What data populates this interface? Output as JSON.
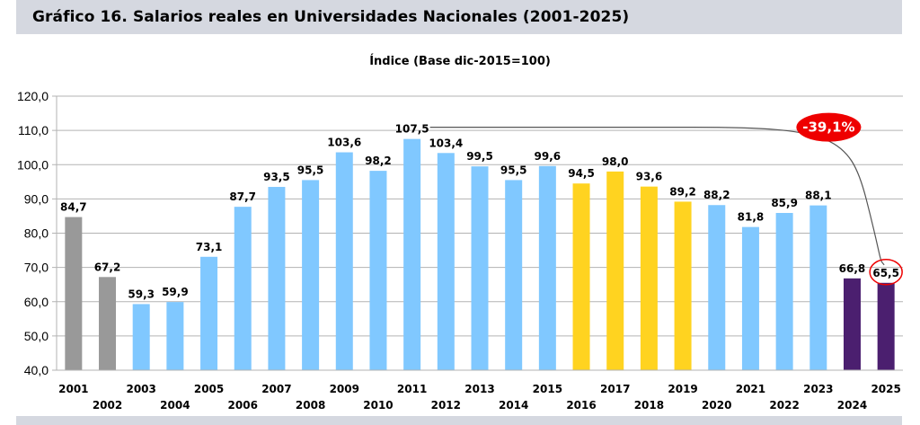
{
  "header": {
    "title": "Gráfico 16. Salarios reales en Universidades Nacionales (2001-2025)"
  },
  "chart_data": {
    "type": "bar",
    "title": "Índice (Base dic-2015=100)",
    "xlabel": "",
    "ylabel": "",
    "ylim": [
      40,
      120
    ],
    "yticks": [
      "40,0",
      "50,0",
      "60,0",
      "70,0",
      "80,0",
      "90,0",
      "100,0",
      "110,0",
      "120,0"
    ],
    "grid": true,
    "categories": [
      "2001",
      "2002",
      "2003",
      "2004",
      "2005",
      "2006",
      "2007",
      "2008",
      "2009",
      "2010",
      "2011",
      "2012",
      "2013",
      "2014",
      "2015",
      "2016",
      "2017",
      "2018",
      "2019",
      "2020",
      "2021",
      "2022",
      "2023",
      "2024",
      "2025"
    ],
    "values": [
      84.7,
      67.2,
      59.3,
      59.9,
      73.1,
      87.7,
      93.5,
      95.5,
      103.6,
      98.2,
      107.5,
      103.4,
      99.5,
      95.5,
      99.6,
      94.5,
      98.0,
      93.6,
      89.2,
      88.2,
      81.8,
      85.9,
      88.1,
      66.8,
      65.5
    ],
    "labels": [
      "84,7",
      "67,2",
      "59,3",
      "59,9",
      "73,1",
      "87,7",
      "93,5",
      "95,5",
      "103,6",
      "98,2",
      "107,5",
      "103,4",
      "99,5",
      "95,5",
      "99,6",
      "94,5",
      "98,0",
      "93,6",
      "89,2",
      "88,2",
      "81,8",
      "85,9",
      "88,1",
      "66,8",
      "65,5"
    ],
    "colors": [
      "#999999",
      "#999999",
      "#80c8ff",
      "#80c8ff",
      "#80c8ff",
      "#80c8ff",
      "#80c8ff",
      "#80c8ff",
      "#80c8ff",
      "#80c8ff",
      "#80c8ff",
      "#80c8ff",
      "#80c8ff",
      "#80c8ff",
      "#80c8ff",
      "#ffd320",
      "#ffd320",
      "#ffd320",
      "#ffd320",
      "#80c8ff",
      "#80c8ff",
      "#80c8ff",
      "#80c8ff",
      "#4b1f6f",
      "#4b1f6f"
    ],
    "annotation": {
      "text": "-39,1%",
      "from": "2011",
      "to": "2025",
      "color": "#ee0000"
    }
  }
}
